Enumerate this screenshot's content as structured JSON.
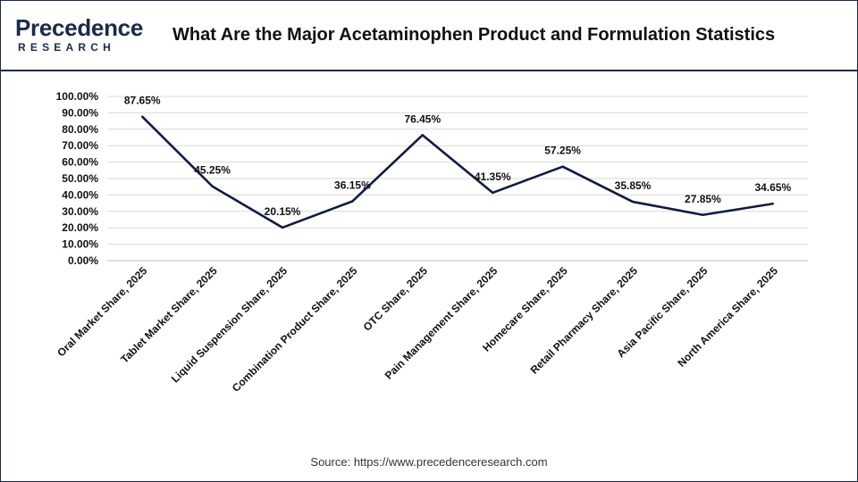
{
  "header": {
    "logo_top": "Precedence",
    "logo_bottom": "RESEARCH",
    "title": "What Are the Major Acetaminophen Product and Formulation Statistics"
  },
  "colors": {
    "line": "#0f1a45",
    "grid": "#d9d9d9",
    "brand": "#1b2a4a"
  },
  "chart_data": {
    "type": "line",
    "categories": [
      "Oral Market Share, 2025",
      "Tablet Market Share, 2025",
      "Liquid Suspension Share, 2025",
      "Combination Product Share, 2025",
      "OTC Share, 2025",
      "Pain Management Share, 2025",
      "Homecare Share, 2025",
      "Retail Pharmacy Share, 2025",
      "Asia Pacific Share, 2025",
      "North America Share, 2025"
    ],
    "series": [
      {
        "values": [
          87.65,
          45.25,
          20.15,
          36.15,
          76.45,
          41.35,
          57.25,
          35.85,
          27.85,
          34.65
        ],
        "labels": [
          "87.65%",
          "45.25%",
          "20.15%",
          "36.15%",
          "76.45%",
          "41.35%",
          "57.25%",
          "35.85%",
          "27.85%",
          "34.65%"
        ]
      }
    ],
    "yticks": [
      "0.00%",
      "10.00%",
      "20.00%",
      "30.00%",
      "40.00%",
      "50.00%",
      "60.00%",
      "70.00%",
      "80.00%",
      "90.00%",
      "100.00%"
    ],
    "ylim": [
      0,
      100
    ],
    "grid": true,
    "legend": "none"
  },
  "footer": {
    "source": "Source: https://www.precedenceresearch.com"
  }
}
